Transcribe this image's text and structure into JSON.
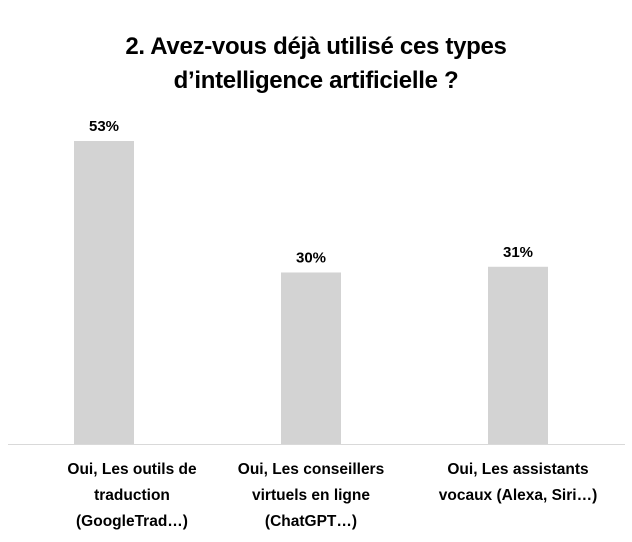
{
  "chart_data": {
    "type": "bar",
    "title_lines": [
      "2. Avez-vous déjà utilisé ces types",
      "d’intelligence artificielle ?"
    ],
    "categories": [
      [
        "Oui, Les outils de",
        "traduction",
        "(GoogleTrad…)"
      ],
      [
        "Oui, Les conseillers",
        "virtuels en ligne",
        "(ChatGPT…)"
      ],
      [
        "Oui, Les assistants",
        "vocaux (Alexa, Siri…)"
      ]
    ],
    "values": [
      53,
      30,
      31
    ],
    "data_labels": [
      "53%",
      "30%",
      "31%"
    ],
    "ylim": [
      0,
      53
    ],
    "grid": false,
    "legend": false,
    "colors": {
      "bar": "#d3d3d3",
      "axis": "#d9d9d9",
      "text": "#000000"
    }
  }
}
